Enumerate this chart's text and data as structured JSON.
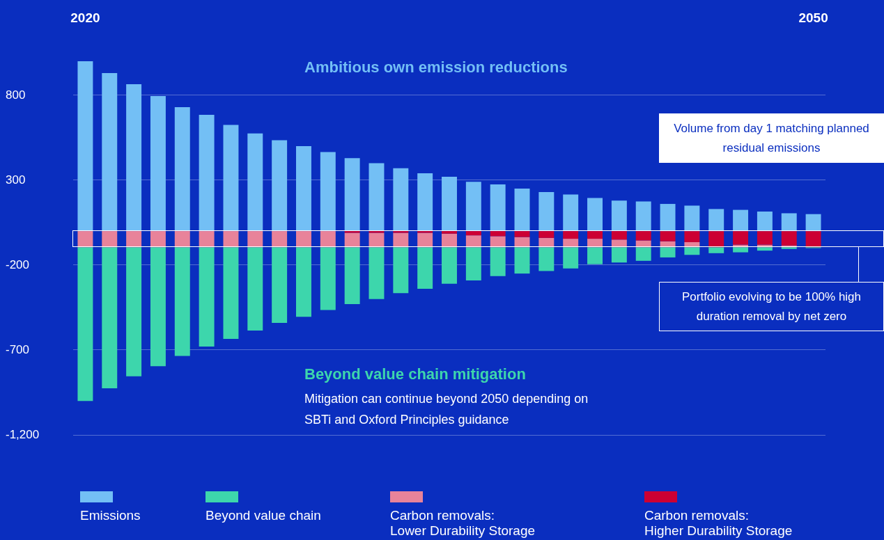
{
  "chart_data": {
    "type": "bar",
    "stacked": true,
    "grid": "y",
    "legend": "bottom",
    "categories": [
      "2020",
      null,
      null,
      null,
      null,
      null,
      null,
      null,
      null,
      null,
      null,
      null,
      null,
      null,
      null,
      null,
      null,
      null,
      null,
      null,
      null,
      null,
      null,
      null,
      null,
      null,
      null,
      null,
      null,
      null,
      "2050"
    ],
    "ylim": [
      -1200,
      1000
    ],
    "yticks": [
      {
        "value": -1200,
        "label": "-1,200"
      },
      -700,
      -200,
      300,
      800
    ],
    "series": [
      {
        "name": "Emissions",
        "color": "#73bff5",
        "values": [
          1000,
          930,
          865,
          795,
          730,
          685,
          625,
          575,
          535,
          500,
          465,
          430,
          400,
          370,
          340,
          320,
          290,
          275,
          250,
          230,
          215,
          195,
          180,
          175,
          160,
          150,
          130,
          125,
          115,
          105,
          100
        ]
      },
      {
        "name": "Carbon removals:\nHigher Durability Storage",
        "color": "#cc0033",
        "values": [
          0,
          0,
          0,
          0,
          0,
          0,
          0,
          0,
          0,
          0,
          0,
          -10,
          -10,
          -10,
          -10,
          -15,
          -25,
          -30,
          -35,
          -40,
          -45,
          -45,
          -50,
          -55,
          -60,
          -65,
          -95,
          -80,
          -80,
          -85,
          -95
        ]
      },
      {
        "name": "Carbon removals:\nLower Durability Storage",
        "color": "#e8839a",
        "values": [
          -95,
          -95,
          -95,
          -95,
          -95,
          -95,
          -95,
          -95,
          -95,
          -95,
          -95,
          -85,
          -85,
          -85,
          -85,
          -80,
          -70,
          -65,
          -60,
          -55,
          -50,
          -50,
          -45,
          -40,
          -35,
          -30,
          0,
          -15,
          -15,
          -10,
          0
        ]
      },
      {
        "name": "Beyond value chain",
        "color": "#3dd6ac",
        "values": [
          -905,
          -830,
          -760,
          -700,
          -640,
          -585,
          -540,
          -490,
          -445,
          -410,
          -370,
          -335,
          -305,
          -270,
          -245,
          -215,
          -195,
          -170,
          -155,
          -140,
          -125,
          -100,
          -90,
          -80,
          -60,
          -45,
          -35,
          -30,
          -20,
          -10,
          -5
        ]
      }
    ],
    "annotations": [
      "Ambitious own emission reductions",
      "Beyond value chain mitigation",
      "Mitigation can continue beyond 2050 depending on SBTi and Oxford Principles guidance",
      "Volume from day 1 matching planned residual emissions",
      "Portfolio evolving to be 100% high duration removal by net zero"
    ]
  }
}
